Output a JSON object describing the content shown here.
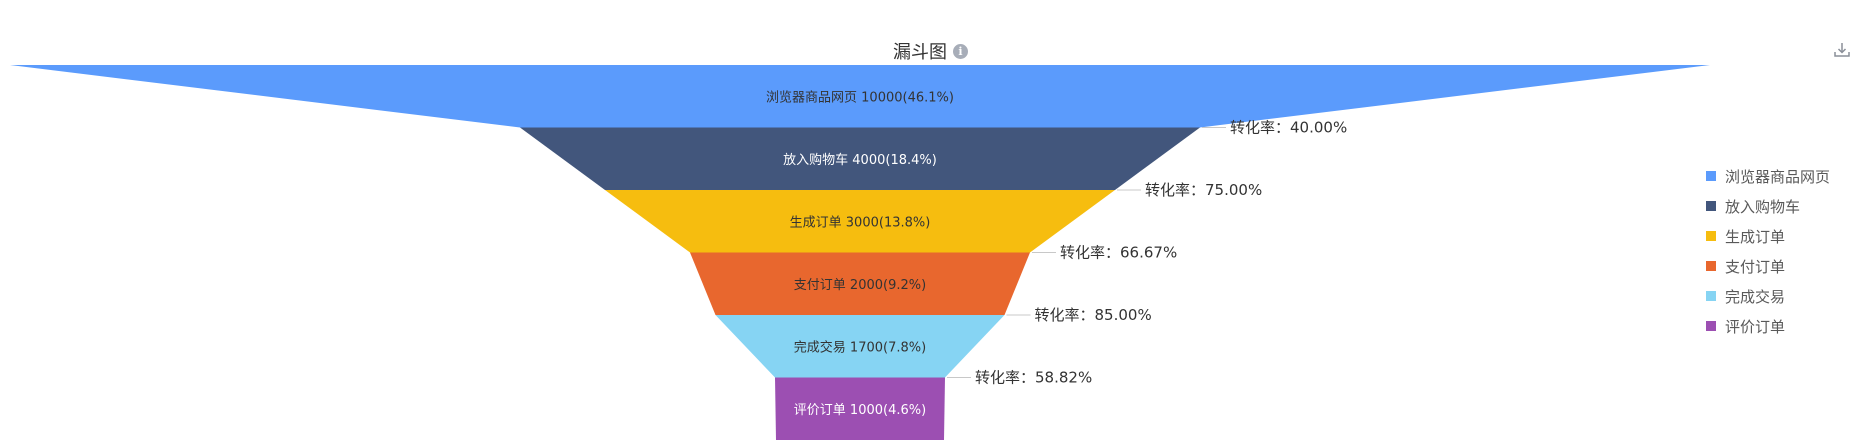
{
  "title": "漏斗图",
  "icons": {
    "info": "info-icon",
    "download": "download-icon"
  },
  "chart_data": {
    "type": "funnel",
    "title": "漏斗图",
    "stages": [
      {
        "name": "浏览器商品网页",
        "value": 10000,
        "percent": "46.1%",
        "color": "#5b9bfc",
        "label_color": "#333333"
      },
      {
        "name": "放入购物车",
        "value": 4000,
        "percent": "18.4%",
        "color": "#42567c",
        "label_color": "#ffffff"
      },
      {
        "name": "生成订单",
        "value": 3000,
        "percent": "13.8%",
        "color": "#f6bd0f",
        "label_color": "#333333"
      },
      {
        "name": "支付订单",
        "value": 2000,
        "percent": "9.2%",
        "color": "#e8672e",
        "label_color": "#333333"
      },
      {
        "name": "完成交易",
        "value": 1700,
        "percent": "7.8%",
        "color": "#86d4f3",
        "label_color": "#333333"
      },
      {
        "name": "评价订单",
        "value": 1000,
        "percent": "4.6%",
        "color": "#9c4fb2",
        "label_color": "#ffffff"
      }
    ],
    "conversion_label": "转化率：",
    "conversions": [
      "40.00%",
      "75.00%",
      "66.67%",
      "85.00%",
      "58.82%"
    ],
    "legend_position": "right"
  }
}
